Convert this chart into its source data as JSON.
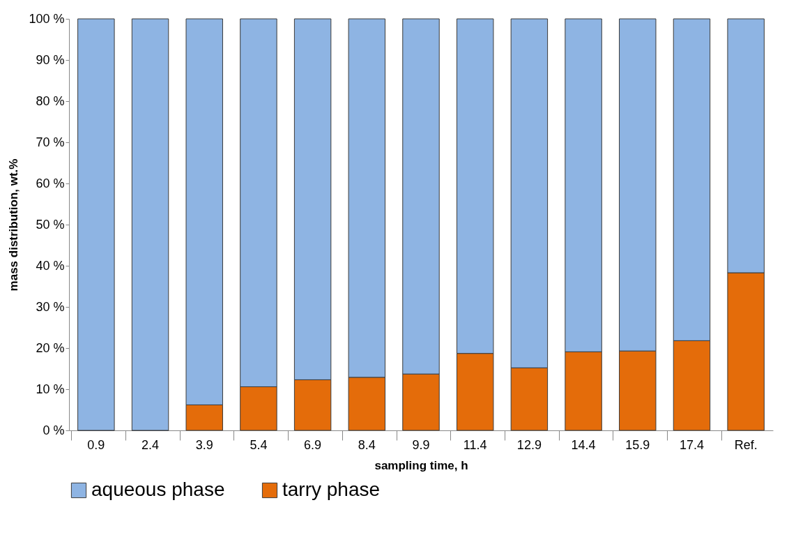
{
  "chart_data": {
    "type": "bar",
    "stacked": true,
    "xlabel": "sampling time, h",
    "ylabel": "mass distribution, wt.%",
    "categories": [
      "0.9",
      "2.4",
      "3.9",
      "5.4",
      "6.9",
      "8.4",
      "9.9",
      "11.4",
      "12.9",
      "14.4",
      "15.9",
      "17.4",
      "Ref."
    ],
    "series": [
      {
        "name": "tarry phase",
        "color": "#e46c0a",
        "values": [
          0,
          0,
          6.2,
          10.6,
          12.3,
          12.9,
          13.7,
          18.7,
          15.2,
          19.1,
          19.3,
          21.8,
          38.3
        ]
      },
      {
        "name": "aqueous phase",
        "color": "#8eb4e3",
        "values": [
          100,
          100,
          93.8,
          89.4,
          87.7,
          87.1,
          86.3,
          81.3,
          84.8,
          80.9,
          80.7,
          78.2,
          61.7
        ]
      }
    ],
    "ylim": [
      0,
      100
    ],
    "yticks": [
      {
        "value": 0,
        "label": "0 %"
      },
      {
        "value": 10,
        "label": "10 %"
      },
      {
        "value": 20,
        "label": "20 %"
      },
      {
        "value": 30,
        "label": "30 %"
      },
      {
        "value": 40,
        "label": "40 %"
      },
      {
        "value": 50,
        "label": "50 %"
      },
      {
        "value": 60,
        "label": "60 %"
      },
      {
        "value": 70,
        "label": "70 %"
      },
      {
        "value": 80,
        "label": "80 %"
      },
      {
        "value": 90,
        "label": "90 %"
      },
      {
        "value": 100,
        "label": "100 %"
      }
    ],
    "legend": "bottom",
    "grid": false
  }
}
